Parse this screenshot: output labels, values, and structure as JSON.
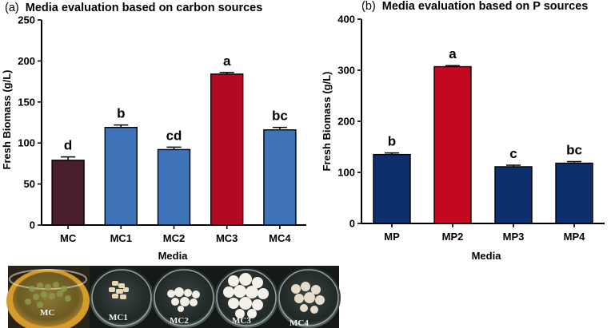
{
  "chart_data": [
    {
      "type": "bar",
      "panel": "(a)",
      "title": "Media evaluation based on carbon sources",
      "xlabel": "Media",
      "ylabel": "Fresh Biomass (g/L)",
      "ylim": [
        0,
        250
      ],
      "yticks": [
        0,
        50,
        100,
        150,
        200,
        250
      ],
      "categories": [
        "MC",
        "MC1",
        "MC2",
        "MC3",
        "MC4"
      ],
      "values": [
        79,
        119,
        92,
        184,
        116
      ],
      "errors": [
        4,
        3,
        3,
        2,
        3
      ],
      "significance": [
        "d",
        "b",
        "cd",
        "a",
        "bc"
      ],
      "colors": [
        "#4a1f2d",
        "#3f73b8",
        "#3f73b8",
        "#b10a22",
        "#3f73b8"
      ]
    },
    {
      "type": "bar",
      "panel": "(b)",
      "title": "Media evaluation based on P sources",
      "xlabel": "Media",
      "ylabel": "Fresh Biomass (g/L)",
      "ylim": [
        0,
        400
      ],
      "yticks": [
        0,
        100,
        200,
        300,
        400
      ],
      "categories": [
        "MP",
        "MP2",
        "MP3",
        "MP4"
      ],
      "values": [
        135,
        307,
        111,
        118
      ],
      "errors": [
        3,
        2,
        3,
        3
      ],
      "significance": [
        "b",
        "a",
        "c",
        "bc"
      ],
      "colors": [
        "#0d2f6e",
        "#c3081f",
        "#0d2f6e",
        "#0d2f6e"
      ]
    }
  ],
  "photos": {
    "labels": [
      "MC",
      "MC1",
      "MC2",
      "MC3",
      "MC4"
    ]
  }
}
